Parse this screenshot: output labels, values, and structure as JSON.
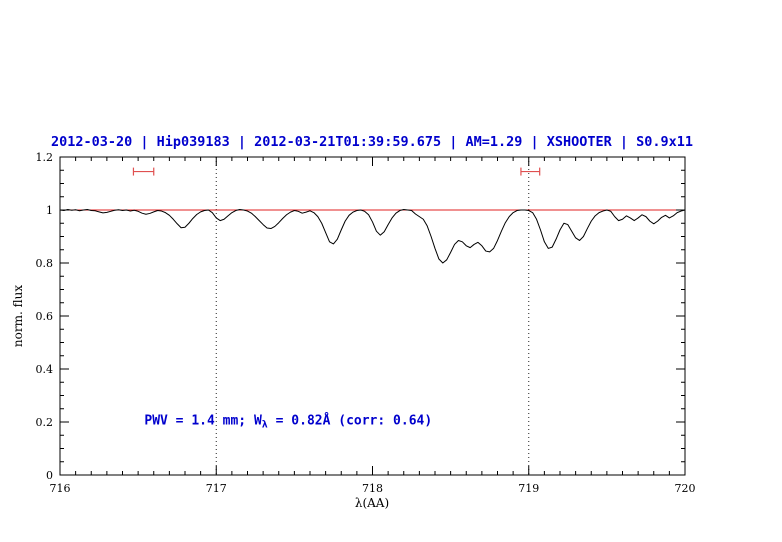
{
  "colors": {
    "accent_blue": "#0000cd",
    "continuum_red": "#e02020",
    "marker_red": "#e05050",
    "spectrum_black": "#000000",
    "frame_black": "#000000"
  },
  "chart_data": {
    "type": "line",
    "title": "2012-03-20 | Hip039183 | 2012-03-21T01:39:59.675 | AM=1.29 | XSHOOTER | S0.9x11",
    "xlabel": "λ(AA)",
    "ylabel": "norm. flux",
    "xlim": [
      716,
      720
    ],
    "ylim": [
      0,
      1.2
    ],
    "x_ticks": [
      716,
      717,
      718,
      719,
      720
    ],
    "y_ticks": [
      0,
      0.2,
      0.4,
      0.6,
      0.8,
      1,
      1.2
    ],
    "x_minor_step": 0.1,
    "y_minor_step": 0.05,
    "grid": "off",
    "legend": "none",
    "dotted_vlines": [
      717,
      719
    ],
    "continuum_level": 1.0,
    "x_start": 716.0,
    "x_step": 0.025,
    "flux": [
      1.0,
      0.998,
      1.002,
      0.999,
      1.001,
      0.997,
      1.0,
      1.002,
      0.998,
      0.997,
      0.993,
      0.989,
      0.991,
      0.995,
      0.999,
      1.001,
      0.998,
      1.0,
      0.996,
      0.999,
      0.995,
      0.988,
      0.984,
      0.987,
      0.993,
      0.998,
      0.996,
      0.99,
      0.98,
      0.965,
      0.948,
      0.933,
      0.935,
      0.95,
      0.968,
      0.983,
      0.993,
      0.998,
      1.0,
      0.99,
      0.97,
      0.96,
      0.965,
      0.978,
      0.99,
      0.998,
      1.002,
      1.0,
      0.996,
      0.988,
      0.975,
      0.96,
      0.945,
      0.932,
      0.93,
      0.938,
      0.952,
      0.968,
      0.982,
      0.992,
      0.998,
      0.995,
      0.988,
      0.992,
      0.997,
      0.99,
      0.975,
      0.95,
      0.915,
      0.88,
      0.872,
      0.89,
      0.925,
      0.958,
      0.98,
      0.992,
      0.998,
      1.0,
      0.995,
      0.982,
      0.955,
      0.92,
      0.905,
      0.918,
      0.945,
      0.97,
      0.988,
      0.998,
      1.002,
      1.0,
      0.998,
      0.985,
      0.975,
      0.965,
      0.94,
      0.9,
      0.855,
      0.815,
      0.8,
      0.812,
      0.84,
      0.87,
      0.885,
      0.88,
      0.865,
      0.858,
      0.87,
      0.878,
      0.865,
      0.845,
      0.842,
      0.855,
      0.885,
      0.92,
      0.952,
      0.975,
      0.99,
      0.998,
      1.0,
      1.0,
      0.998,
      0.99,
      0.965,
      0.925,
      0.88,
      0.855,
      0.86,
      0.89,
      0.925,
      0.95,
      0.945,
      0.92,
      0.895,
      0.885,
      0.9,
      0.93,
      0.958,
      0.978,
      0.99,
      0.996,
      1.0,
      0.995,
      0.975,
      0.96,
      0.965,
      0.978,
      0.97,
      0.96,
      0.97,
      0.982,
      0.975,
      0.958,
      0.948,
      0.958,
      0.972,
      0.98,
      0.97,
      0.978,
      0.99,
      0.996,
      1.0
    ],
    "red_markers": {
      "y": 1.145,
      "cap_halfheight": 0.015,
      "segments": [
        [
          716.47,
          716.6
        ],
        [
          718.95,
          719.07
        ]
      ]
    },
    "annotation": {
      "pre": "PWV = 1.4 mm; W",
      "sub": "λ",
      "post": " = 0.82Å (corr: 0.64)",
      "x": 716.54,
      "y": 0.19
    }
  }
}
